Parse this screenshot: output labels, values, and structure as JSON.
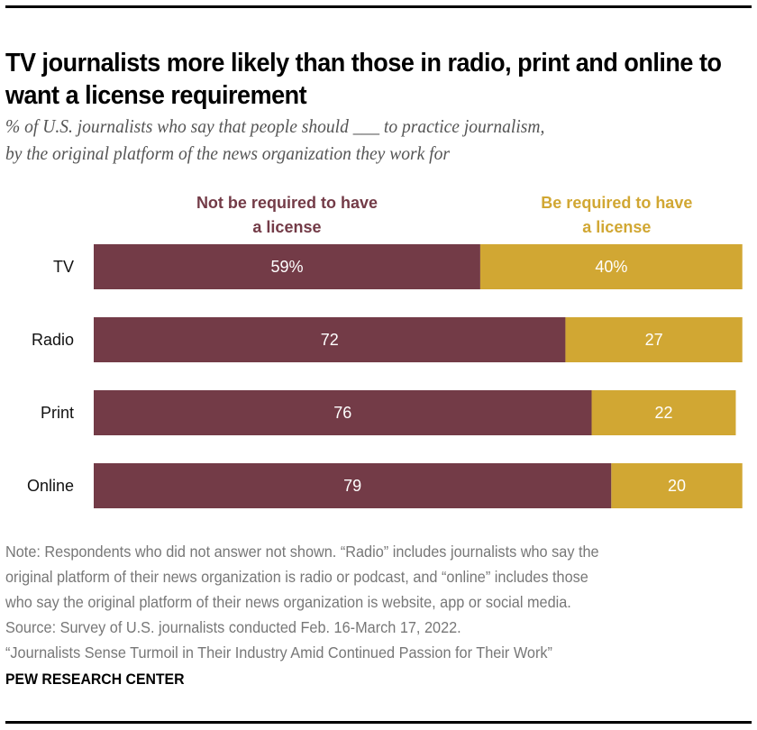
{
  "header": {
    "title": "TV journalists more likely than those in radio, print and online to want a license requirement",
    "subtitle_line1": "% of U.S. journalists who say that people should ___ to practice journalism,",
    "subtitle_line2": "by the original platform of the news organization they work for"
  },
  "chart_data": {
    "type": "bar",
    "orientation": "horizontal",
    "stacked": true,
    "title": "TV journalists more likely than those in radio, print and online to want a license requirement",
    "categories": [
      "TV",
      "Radio",
      "Print",
      "Online"
    ],
    "series": [
      {
        "name": "Not be required to have a license",
        "legend_lines": [
          "Not be required to have",
          "a license"
        ],
        "color": "#733B47",
        "values": [
          59,
          72,
          76,
          79
        ],
        "labels": [
          "59%",
          "72",
          "76",
          "79"
        ]
      },
      {
        "name": "Be required to have a license",
        "legend_lines": [
          "Be required to have",
          "a license"
        ],
        "color": "#D1A733",
        "values": [
          40,
          27,
          22,
          20
        ],
        "labels": [
          "40%",
          "27",
          "22",
          "20"
        ]
      }
    ],
    "xlabel": "",
    "ylabel": "",
    "xlim": [
      0,
      100
    ],
    "grid": false,
    "legend_position": "top"
  },
  "footer": {
    "notes": [
      "Note: Respondents who did not answer not shown. “Radio” includes journalists who say the",
      "original platform of their news organization is radio or podcast, and “online” includes those",
      "who say the original platform of their news organization is website, app or social media.",
      "Source: Survey of U.S. journalists conducted Feb. 16-March 17, 2022.",
      "“Journalists Sense Turmoil in Their Industry Amid Continued Passion for Their Work”"
    ],
    "brand": "PEW RESEARCH CENTER"
  }
}
